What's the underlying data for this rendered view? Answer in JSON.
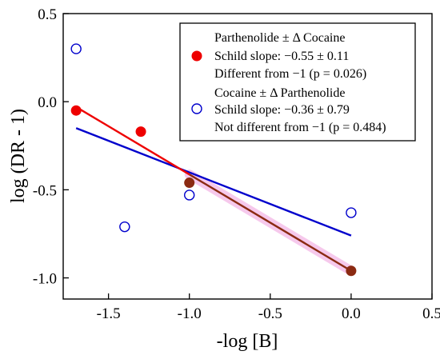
{
  "chart_data": {
    "type": "scatter",
    "xlabel": "-log [B]",
    "ylabel": "log (DR - 1)",
    "xlim": [
      -1.78,
      0.5
    ],
    "ylim": [
      -1.12,
      0.5
    ],
    "xticks": [
      {
        "v": -1.5,
        "label": "-1.5"
      },
      {
        "v": -1.0,
        "label": "-1.0"
      },
      {
        "v": -0.5,
        "label": "-0.5"
      },
      {
        "v": 0.0,
        "label": "0.0"
      },
      {
        "v": 0.5,
        "label": "0.5"
      }
    ],
    "yticks": [
      {
        "v": 0.5,
        "label": "0.5"
      },
      {
        "v": 0.0,
        "label": "0.0"
      },
      {
        "v": -0.5,
        "label": "-0.5"
      },
      {
        "v": -1.0,
        "label": "-1.0"
      }
    ],
    "grid": false,
    "legend_position": "top-right",
    "series": [
      {
        "name": "Parthenolide ± Δ Cocaine",
        "marker": "filled-circle",
        "color": "#ee0000",
        "points": [
          {
            "x": -1.7,
            "y": -0.05
          },
          {
            "x": -1.3,
            "y": -0.17
          },
          {
            "x": -1.0,
            "y": -0.46
          },
          {
            "x": 0.0,
            "y": -0.96
          }
        ],
        "fit_line": {
          "x": [
            -1.7,
            0.0
          ],
          "y": [
            -0.03,
            -0.96
          ]
        },
        "legend_lines": [
          "Schild slope: −0.55 ± 0.11",
          "Different from −1 (p = 0.026)"
        ]
      },
      {
        "name": "Cocaine ± Δ Parthenolide",
        "marker": "open-circle",
        "color": "#0000cc",
        "points": [
          {
            "x": -1.7,
            "y": 0.3
          },
          {
            "x": -1.4,
            "y": -0.71
          },
          {
            "x": -1.0,
            "y": -0.53
          },
          {
            "x": 0.0,
            "y": -0.63
          }
        ],
        "fit_line": {
          "x": [
            -1.7,
            0.0
          ],
          "y": [
            -0.15,
            -0.76
          ]
        },
        "legend_lines": [
          "Schild slope: −0.36 ± 0.79",
          "Not different from −1 (p = 0.484)"
        ]
      }
    ],
    "overlap_color": "#8b2a12"
  }
}
